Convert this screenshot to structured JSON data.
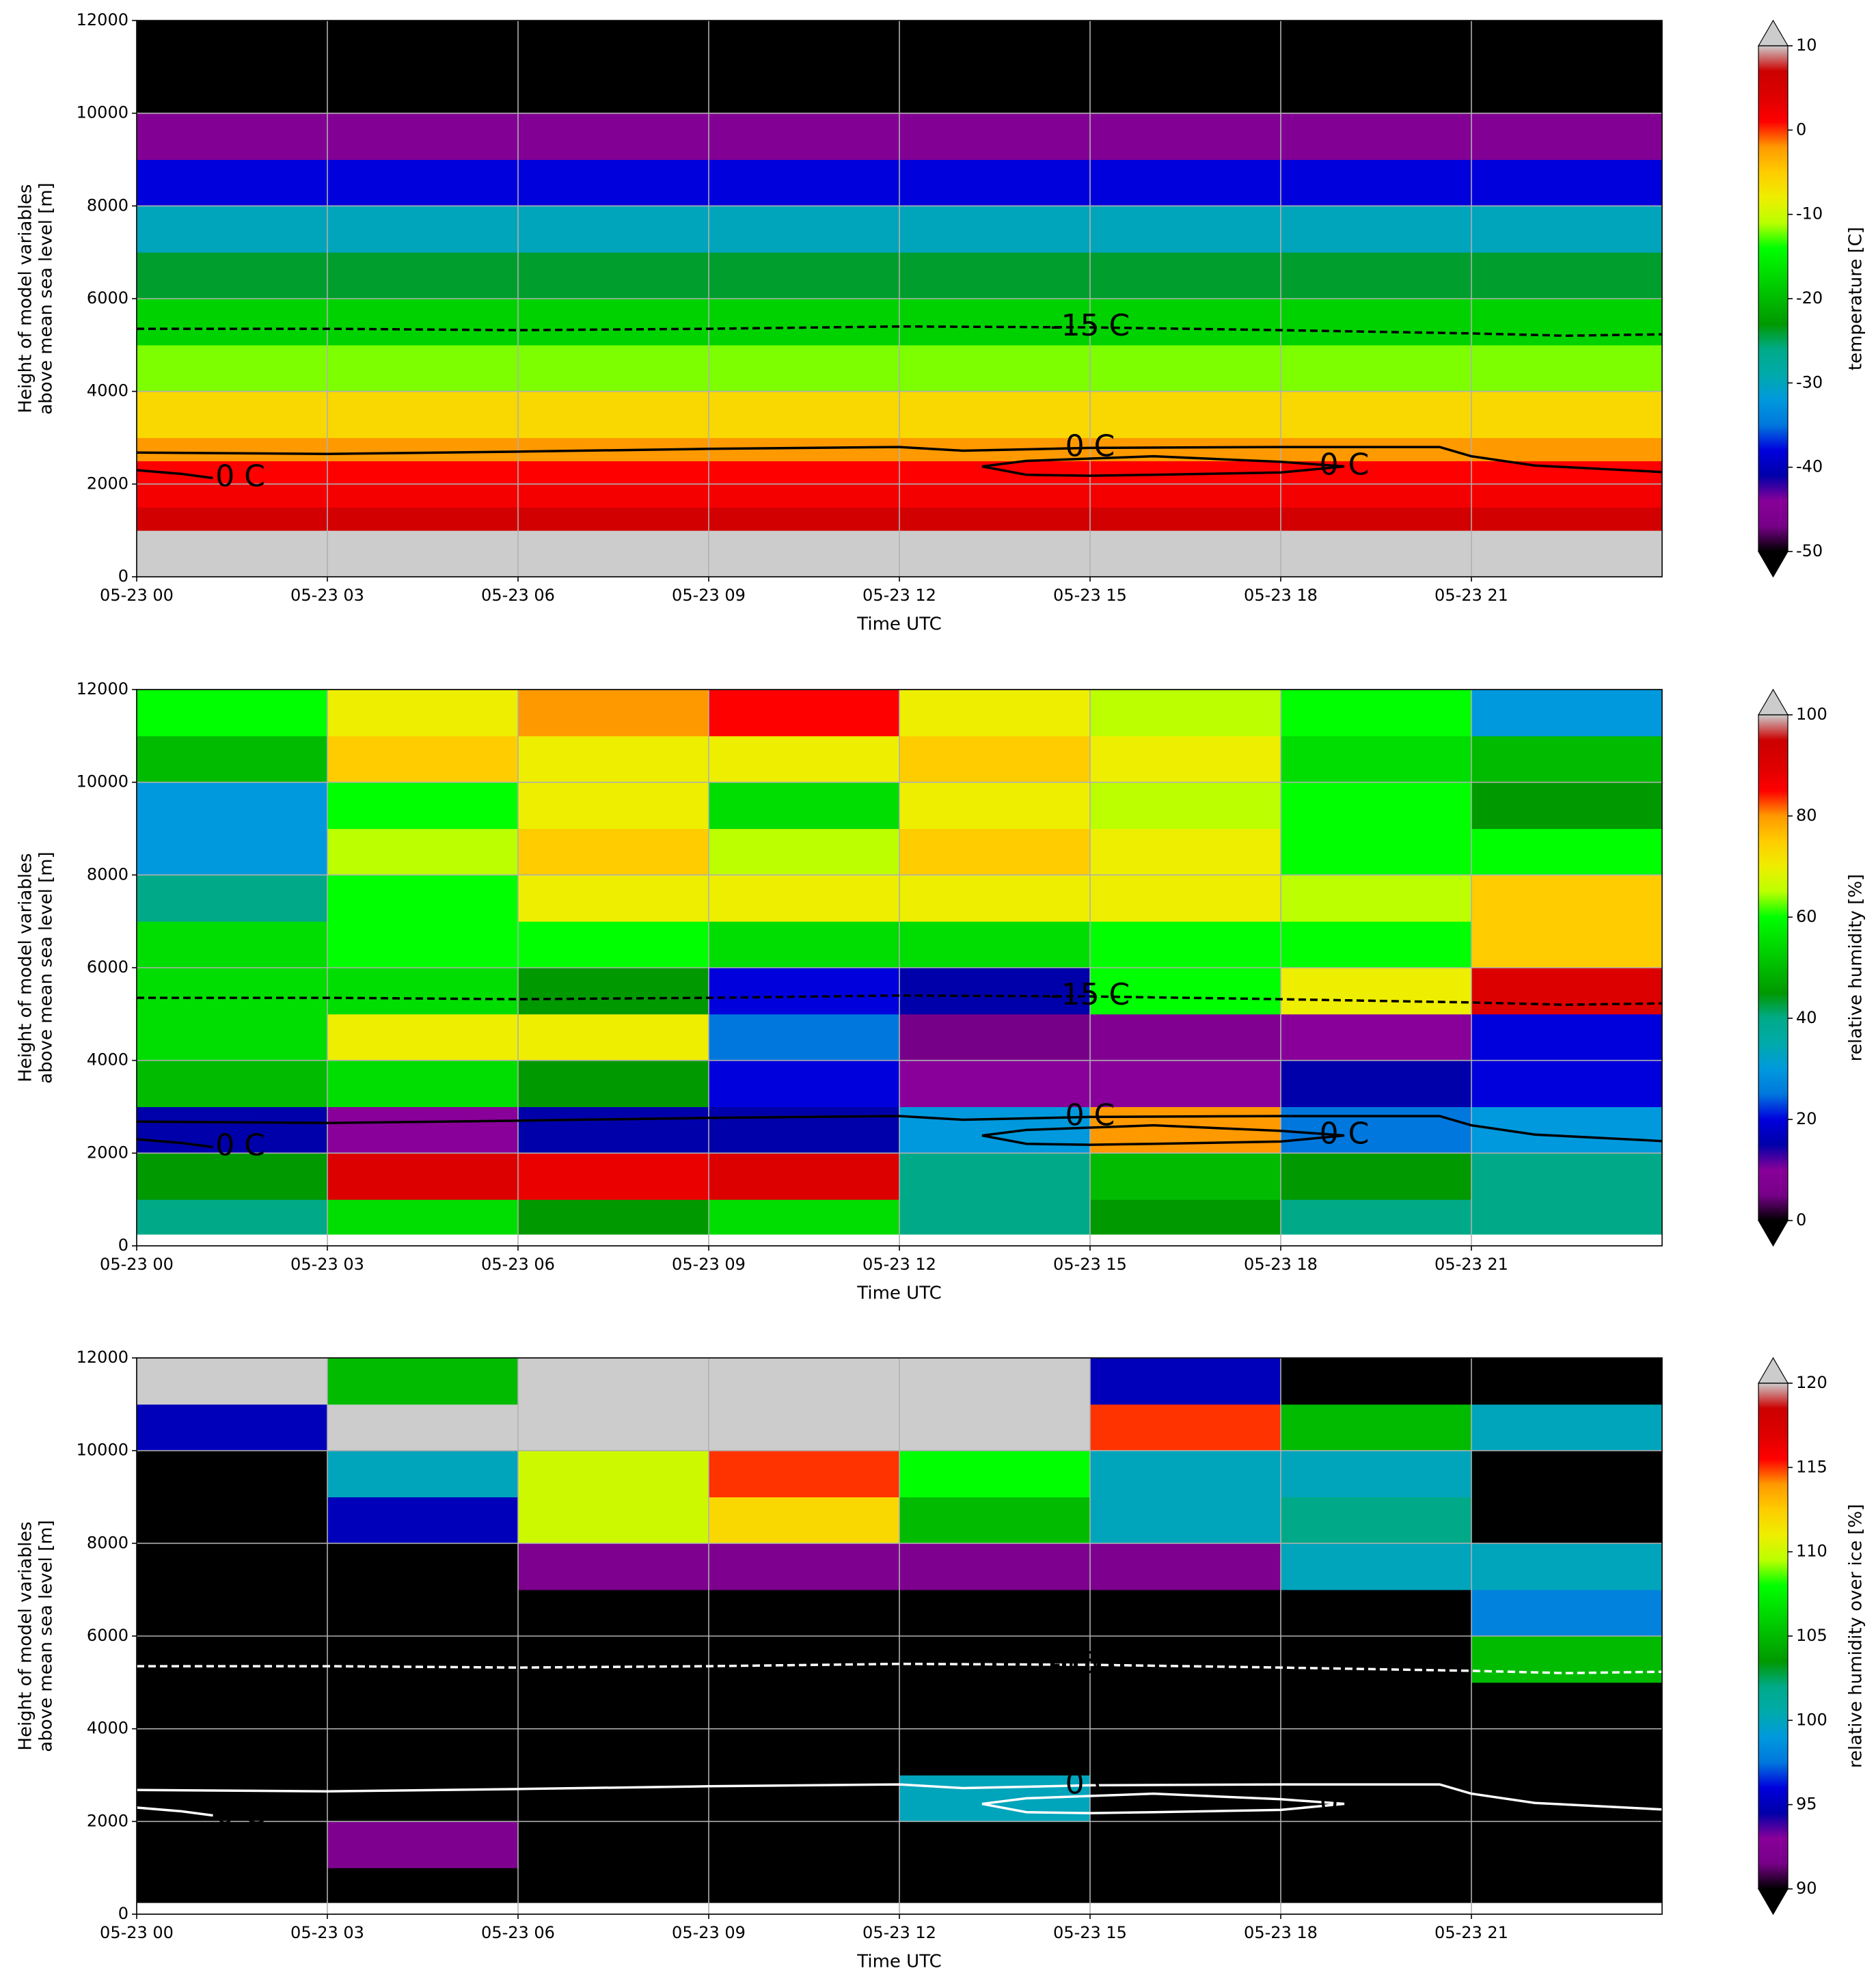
{
  "chart_data": [
    {
      "type": "heatmap",
      "colormap": "nipy_spectral",
      "over_color": "#cccccc",
      "under_color": "#000000",
      "xlabel": "Time UTC",
      "ylabel": [
        "Height of model variables",
        "above mean sea level [m]"
      ],
      "xlim": [
        0,
        24
      ],
      "ylim": [
        0,
        12000
      ],
      "xticks": [
        {
          "value": 0,
          "label": "05-23 00"
        },
        {
          "value": 3,
          "label": "05-23 03"
        },
        {
          "value": 6,
          "label": "05-23 06"
        },
        {
          "value": 9,
          "label": "05-23 09"
        },
        {
          "value": 12,
          "label": "05-23 12"
        },
        {
          "value": 15,
          "label": "05-23 15"
        },
        {
          "value": 18,
          "label": "05-23 18"
        },
        {
          "value": 21,
          "label": "05-23 21"
        }
      ],
      "yticks": [
        0,
        2000,
        4000,
        6000,
        8000,
        10000,
        12000
      ],
      "grid": true,
      "colorbar_label": "temperature [C]",
      "clim": [
        -50,
        10
      ],
      "cbar_ticks": [
        -50,
        -40,
        -30,
        -20,
        -10,
        0,
        10
      ],
      "x_edges": [
        0,
        24
      ],
      "y_edges": [
        0,
        1000,
        1500,
        2000,
        2500,
        3000,
        4000,
        5000,
        6000,
        7000,
        8000,
        9000,
        10000,
        12000
      ],
      "z": [
        [
          12
        ],
        [
          6
        ],
        [
          2
        ],
        [
          1
        ],
        [
          -2
        ],
        [
          -6
        ],
        [
          -12
        ],
        [
          -18
        ],
        [
          -24
        ],
        [
          -30
        ],
        [
          -38
        ],
        [
          -45
        ],
        [
          -55
        ]
      ],
      "contour_color": "#000000",
      "contours": [
        {
          "label": "-15 C",
          "dashed": true,
          "x": [
            0,
            3,
            6,
            9,
            12,
            15,
            18,
            21,
            22.5,
            24
          ],
          "y": [
            5350,
            5350,
            5320,
            5350,
            5400,
            5380,
            5320,
            5250,
            5200,
            5230
          ]
        },
        {
          "label": "0 C",
          "dashed": false,
          "x": [
            0,
            3,
            6,
            9,
            12,
            13,
            15,
            18,
            19,
            20.5,
            21,
            22,
            24
          ],
          "y": [
            2680,
            2650,
            2700,
            2760,
            2800,
            2720,
            2780,
            2800,
            2800,
            2800,
            2600,
            2400,
            2260
          ]
        },
        {
          "label": "0 C",
          "dashed": false,
          "x": [
            13.3,
            14,
            15,
            16,
            18,
            19,
            18,
            16,
            15,
            14,
            13.3
          ],
          "y": [
            2380,
            2500,
            2550,
            2600,
            2480,
            2380,
            2250,
            2200,
            2180,
            2200,
            2380
          ]
        },
        {
          "label": "0 C",
          "dashed": false,
          "x": [
            0,
            0.7,
            1.2
          ],
          "y": [
            2300,
            2220,
            2130
          ]
        }
      ]
    },
    {
      "type": "heatmap",
      "colormap": "nipy_spectral",
      "over_color": "#cccccc",
      "under_color": "#000000",
      "xlabel": "Time UTC",
      "ylabel": [
        "Height of model variables",
        "above mean sea level [m]"
      ],
      "xlim": [
        0,
        24
      ],
      "ylim": [
        0,
        12000
      ],
      "xticks": [
        {
          "value": 0,
          "label": "05-23 00"
        },
        {
          "value": 3,
          "label": "05-23 03"
        },
        {
          "value": 6,
          "label": "05-23 06"
        },
        {
          "value": 9,
          "label": "05-23 09"
        },
        {
          "value": 12,
          "label": "05-23 12"
        },
        {
          "value": 15,
          "label": "05-23 15"
        },
        {
          "value": 18,
          "label": "05-23 18"
        },
        {
          "value": 21,
          "label": "05-23 21"
        }
      ],
      "yticks": [
        0,
        2000,
        4000,
        6000,
        8000,
        10000,
        12000
      ],
      "grid": true,
      "colorbar_label": "relative humidity [%]",
      "clim": [
        0,
        100
      ],
      "cbar_ticks": [
        0,
        20,
        40,
        60,
        80,
        100
      ],
      "x_edges": [
        0,
        3,
        6,
        9,
        12,
        15,
        18,
        21,
        24
      ],
      "y_edges": [
        0,
        250,
        1000,
        2000,
        3000,
        4000,
        5000,
        6000,
        7000,
        8000,
        9000,
        10000,
        11000,
        12000
      ],
      "z": [
        [
          null,
          null,
          null,
          null,
          null,
          null,
          null,
          null
        ],
        [
          40,
          55,
          45,
          55,
          40,
          45,
          40,
          40
        ],
        [
          45,
          90,
          88,
          90,
          40,
          50,
          45,
          40
        ],
        [
          15,
          10,
          15,
          15,
          30,
          80,
          25,
          30
        ],
        [
          50,
          55,
          45,
          20,
          10,
          10,
          15,
          20
        ],
        [
          55,
          70,
          70,
          25,
          5,
          8,
          10,
          20
        ],
        [
          55,
          55,
          45,
          20,
          15,
          60,
          70,
          90
        ],
        [
          55,
          60,
          60,
          55,
          55,
          60,
          60,
          75
        ],
        [
          40,
          60,
          70,
          70,
          70,
          70,
          65,
          75
        ],
        [
          30,
          65,
          75,
          65,
          75,
          70,
          60,
          60
        ],
        [
          30,
          60,
          70,
          55,
          70,
          65,
          60,
          45
        ],
        [
          50,
          75,
          70,
          70,
          75,
          70,
          55,
          50
        ],
        [
          60,
          70,
          80,
          85,
          70,
          65,
          60,
          30
        ]
      ],
      "contour_color": "#000000",
      "contours": [
        {
          "label": "-15 C",
          "dashed": true,
          "x": [
            0,
            3,
            6,
            9,
            12,
            15,
            18,
            21,
            22.5,
            24
          ],
          "y": [
            5350,
            5350,
            5320,
            5350,
            5400,
            5380,
            5320,
            5250,
            5200,
            5230
          ]
        },
        {
          "label": "0 C",
          "dashed": false,
          "x": [
            0,
            3,
            6,
            9,
            12,
            13,
            15,
            18,
            19,
            20.5,
            21,
            22,
            24
          ],
          "y": [
            2680,
            2650,
            2700,
            2760,
            2800,
            2720,
            2780,
            2800,
            2800,
            2800,
            2600,
            2400,
            2260
          ]
        },
        {
          "label": "0 C",
          "dashed": false,
          "x": [
            13.3,
            14,
            15,
            16,
            18,
            19,
            18,
            16,
            15,
            14,
            13.3
          ],
          "y": [
            2380,
            2500,
            2550,
            2600,
            2480,
            2380,
            2250,
            2200,
            2180,
            2200,
            2380
          ]
        },
        {
          "label": "0 C",
          "dashed": false,
          "x": [
            0,
            0.7,
            1.2
          ],
          "y": [
            2300,
            2220,
            2130
          ]
        }
      ]
    },
    {
      "type": "heatmap",
      "colormap": "nipy_spectral",
      "over_color": "#cccccc",
      "under_color": "#000000",
      "xlabel": "Time UTC",
      "ylabel": [
        "Height of model variables",
        "above mean sea level [m]"
      ],
      "xlim": [
        0,
        24
      ],
      "ylim": [
        0,
        12000
      ],
      "xticks": [
        {
          "value": 0,
          "label": "05-23 00"
        },
        {
          "value": 3,
          "label": "05-23 03"
        },
        {
          "value": 6,
          "label": "05-23 06"
        },
        {
          "value": 9,
          "label": "05-23 09"
        },
        {
          "value": 12,
          "label": "05-23 12"
        },
        {
          "value": 15,
          "label": "05-23 15"
        },
        {
          "value": 18,
          "label": "05-23 18"
        },
        {
          "value": 21,
          "label": "05-23 21"
        }
      ],
      "yticks": [
        0,
        2000,
        4000,
        6000,
        8000,
        10000,
        12000
      ],
      "grid": true,
      "colorbar_label": "relative humidity over ice [%]",
      "clim": [
        90,
        120
      ],
      "cbar_ticks": [
        90,
        95,
        100,
        105,
        110,
        115,
        120
      ],
      "x_edges": [
        0,
        3,
        6,
        9,
        12,
        15,
        18,
        21,
        24
      ],
      "y_edges": [
        0,
        250,
        1000,
        2000,
        3000,
        4000,
        5000,
        6000,
        7000,
        8000,
        9000,
        10000,
        11000,
        12000
      ],
      "z": [
        [
          null,
          null,
          null,
          null,
          null,
          null,
          null,
          null
        ],
        [
          85,
          85,
          85,
          85,
          85,
          85,
          85,
          85
        ],
        [
          85,
          92,
          85,
          85,
          85,
          85,
          85,
          85
        ],
        [
          85,
          85,
          85,
          85,
          100,
          85,
          85,
          85
        ],
        [
          85,
          85,
          85,
          85,
          85,
          85,
          85,
          85
        ],
        [
          85,
          85,
          85,
          85,
          85,
          85,
          85,
          85
        ],
        [
          85,
          85,
          85,
          85,
          85,
          85,
          85,
          105
        ],
        [
          85,
          85,
          85,
          85,
          85,
          85,
          85,
          98
        ],
        [
          85,
          85,
          92,
          92,
          92,
          92,
          100,
          100
        ],
        [
          85,
          95,
          110,
          112,
          105,
          100,
          102,
          85
        ],
        [
          85,
          100,
          110,
          115,
          108,
          100,
          100,
          85
        ],
        [
          95,
          125,
          125,
          125,
          125,
          115,
          105,
          100
        ],
        [
          125,
          105,
          125,
          125,
          125,
          95,
          85,
          85
        ]
      ],
      "contour_color": "#ffffff",
      "contours": [
        {
          "label": "-15 C",
          "dashed": true,
          "x": [
            0,
            3,
            6,
            9,
            12,
            15,
            18,
            21,
            22.5,
            24
          ],
          "y": [
            5350,
            5350,
            5320,
            5350,
            5400,
            5380,
            5320,
            5250,
            5200,
            5230
          ]
        },
        {
          "label": "0 C",
          "dashed": false,
          "x": [
            0,
            3,
            6,
            9,
            12,
            13,
            15,
            18,
            19,
            20.5,
            21,
            22,
            24
          ],
          "y": [
            2680,
            2650,
            2700,
            2760,
            2800,
            2720,
            2780,
            2800,
            2800,
            2800,
            2600,
            2400,
            2260
          ]
        },
        {
          "label": "0 C",
          "dashed": false,
          "x": [
            13.3,
            14,
            15,
            16,
            18,
            19,
            18,
            16,
            15,
            14,
            13.3
          ],
          "y": [
            2380,
            2500,
            2550,
            2600,
            2480,
            2380,
            2250,
            2200,
            2180,
            2200,
            2380
          ]
        },
        {
          "label": "0 C",
          "dashed": false,
          "x": [
            0,
            0.7,
            1.2
          ],
          "y": [
            2300,
            2220,
            2130
          ]
        }
      ]
    }
  ]
}
